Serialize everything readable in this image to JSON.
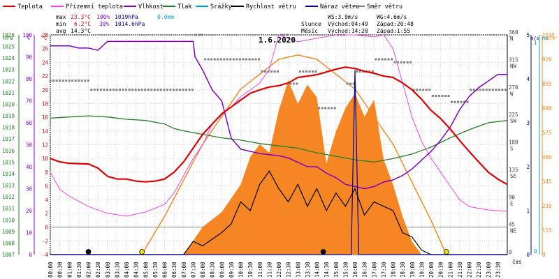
{
  "chart_data": {
    "type": "line",
    "date": "1.6.2020",
    "legend": [
      {
        "label": "Teplota",
        "color": "#e00000"
      },
      {
        "label": "Přízemní teplota",
        "color": "#ee44ee"
      },
      {
        "label": "Vlhkost",
        "color": "#8000c0"
      },
      {
        "label": "Tlak",
        "color": "#208020"
      },
      {
        "label": "Srážky",
        "color": "#00a0c8"
      },
      {
        "label": "Rychlost větru",
        "color": "#000000"
      },
      {
        "label": "Náraz větru",
        "color": "#000090"
      },
      {
        "label": "Směr větru",
        "color": "#808080"
      }
    ],
    "stats": {
      "max_label": "max",
      "max_temp": "23.3°C",
      "max_hum": "100%",
      "max_press": "1019hPa",
      "rain": "0.0mm",
      "min_label": "min",
      "min_temp": "6.2°C",
      "min_hum": "30%",
      "min_press": "1014.6hPa",
      "avg_label": "avg",
      "avg_temp": "14.3°C"
    },
    "info": {
      "ws": "WS:3.9m/s",
      "wg": "WG:4.6m/s",
      "sun_label": "Slunce",
      "sunrise": "Východ:04:49",
      "sunset": "Západ:20:48",
      "moon_label": "Měsíc",
      "moonrise": "Východ:14:20",
      "moonset": "Západ:1:55"
    },
    "axis_titles": {
      "hpa": "hPa",
      "pct": "%",
      "degc": "°C",
      "deg": "°",
      "ms": "m/s",
      "mm": "mm",
      "wm2": "W/m²",
      "time": "čas"
    },
    "hpa_ticks": [
      "1026",
      "1025",
      "1024",
      "1023",
      "1022",
      "1021",
      "1020",
      "1019",
      "1018",
      "1017",
      "1016",
      "1015",
      "1014",
      "1013",
      "1012",
      "1011",
      "1010",
      "1009",
      "1008",
      "1007"
    ],
    "pct_ticks": [
      "100",
      "90",
      "80",
      "70",
      "60",
      "50",
      "40",
      "30",
      "20",
      "10",
      "0"
    ],
    "temp_ticks": [
      "28",
      "26",
      "24",
      "22",
      "20",
      "18",
      "16",
      "14",
      "12",
      "10",
      "8",
      "6",
      "4",
      "2",
      "0",
      "-2",
      "-4"
    ],
    "dir_ticks": [
      {
        "value": "360",
        "label": "N"
      },
      {
        "value": "315",
        "label": "NW"
      },
      {
        "value": "270",
        "label": "W"
      },
      {
        "value": "225",
        "label": "SW"
      },
      {
        "value": "180",
        "label": "S"
      },
      {
        "value": "135",
        "label": "SE"
      },
      {
        "value": "90",
        "label": "E"
      },
      {
        "value": "45",
        "label": "NE"
      },
      {
        "value": "0",
        "label": ""
      }
    ],
    "ms_ticks": [
      "5",
      "4",
      "3",
      "2",
      "1",
      "0"
    ],
    "mm_ticks": [
      "1",
      "0"
    ],
    "wm2_ticks": [
      "1035",
      "920",
      "805",
      "690",
      "575",
      "460",
      "345",
      "230",
      "115",
      "0"
    ],
    "time_ticks": [
      "00:00",
      "00:30",
      "01:00",
      "01:30",
      "02:00",
      "02:30",
      "03:00",
      "03:30",
      "04:00",
      "04:30",
      "05:00",
      "05:30",
      "06:00",
      "06:30",
      "07:00",
      "07:30",
      "08:00",
      "08:30",
      "09:00",
      "09:30",
      "10:00",
      "10:30",
      "11:00",
      "11:30",
      "12:00",
      "12:30",
      "13:00",
      "13:30",
      "14:00",
      "14:30",
      "15:00",
      "15:30",
      "16:00",
      "16:30",
      "17:00",
      "17:30",
      "18:00",
      "18:30",
      "19:00",
      "19:30",
      "20:00",
      "20:30",
      "21:00",
      "21:30",
      "22:00",
      "22:30",
      "23:00",
      "23:30"
    ],
    "series_hours": {
      "temperature_c": [
        [
          0,
          10
        ],
        [
          0.5,
          9.5
        ],
        [
          1,
          9.3
        ],
        [
          2,
          9.2
        ],
        [
          2.5,
          8.6
        ],
        [
          3,
          7.4
        ],
        [
          3.5,
          7
        ],
        [
          4,
          7
        ],
        [
          4.5,
          6.7
        ],
        [
          5,
          6.6
        ],
        [
          5.5,
          6.7
        ],
        [
          6,
          7
        ],
        [
          6.5,
          8
        ],
        [
          7,
          9.5
        ],
        [
          7.5,
          11.5
        ],
        [
          8,
          13.5
        ],
        [
          8.5,
          15
        ],
        [
          9,
          16.5
        ],
        [
          9.5,
          17.5
        ],
        [
          10,
          18.5
        ],
        [
          10.5,
          19.5
        ],
        [
          11,
          20
        ],
        [
          11.5,
          20.4
        ],
        [
          12,
          20.6
        ],
        [
          12.5,
          21
        ],
        [
          13,
          21.8
        ],
        [
          13.5,
          22
        ],
        [
          14,
          22.2
        ],
        [
          14.5,
          22.6
        ],
        [
          15,
          23
        ],
        [
          15.5,
          23.3
        ],
        [
          16,
          23.1
        ],
        [
          16.5,
          22.7
        ],
        [
          17,
          22.4
        ],
        [
          17.5,
          22
        ],
        [
          18,
          21.8
        ],
        [
          18.5,
          21
        ],
        [
          19,
          20
        ],
        [
          19.5,
          18.6
        ],
        [
          20,
          17
        ],
        [
          20.5,
          15.8
        ],
        [
          21,
          14.3
        ],
        [
          21.5,
          12.6
        ],
        [
          22,
          11
        ],
        [
          22.5,
          9.5
        ],
        [
          23,
          8
        ],
        [
          23.5,
          7
        ],
        [
          24,
          6.2
        ]
      ],
      "ground_temp_c": [
        [
          0,
          8
        ],
        [
          0.5,
          5.5
        ],
        [
          1,
          4.5
        ],
        [
          2,
          3
        ],
        [
          3,
          2
        ],
        [
          4,
          1.6
        ],
        [
          5,
          2.2
        ],
        [
          6,
          3.3
        ],
        [
          6.5,
          5
        ],
        [
          7,
          7.5
        ],
        [
          7.5,
          10
        ],
        [
          8,
          12
        ],
        [
          8.5,
          15
        ],
        [
          9,
          16.5
        ],
        [
          9.5,
          17.5
        ],
        [
          10,
          19
        ],
        [
          11,
          21
        ],
        [
          11.5,
          23
        ],
        [
          12,
          28
        ],
        [
          13,
          27
        ],
        [
          14,
          27.5
        ],
        [
          15,
          28
        ],
        [
          16,
          28
        ],
        [
          17,
          27.7
        ],
        [
          17.5,
          28
        ],
        [
          18,
          26
        ],
        [
          18.5,
          21
        ],
        [
          19,
          16
        ],
        [
          19.5,
          12.5
        ],
        [
          20,
          10
        ],
        [
          21,
          6
        ],
        [
          21.5,
          4
        ],
        [
          22,
          3
        ],
        [
          23,
          2.5
        ],
        [
          24,
          2.3
        ]
      ],
      "humidity_pct": [
        [
          0,
          95
        ],
        [
          1,
          95
        ],
        [
          1.5,
          94
        ],
        [
          2,
          94
        ],
        [
          2.5,
          93
        ],
        [
          3,
          97
        ],
        [
          4.5,
          97
        ],
        [
          6,
          97
        ],
        [
          7.5,
          97
        ],
        [
          7.6,
          90
        ],
        [
          8,
          84
        ],
        [
          8.5,
          75
        ],
        [
          9,
          70
        ],
        [
          9.5,
          53
        ],
        [
          10,
          48
        ],
        [
          10.5,
          47
        ],
        [
          11,
          46
        ],
        [
          12,
          45
        ],
        [
          12.5,
          44
        ],
        [
          13,
          42
        ],
        [
          13.5,
          40
        ],
        [
          14,
          40
        ],
        [
          14.5,
          37
        ],
        [
          15,
          35
        ],
        [
          15.5,
          32
        ],
        [
          16,
          31
        ],
        [
          16.5,
          30
        ],
        [
          17,
          31
        ],
        [
          17.5,
          33
        ],
        [
          18,
          34
        ],
        [
          18.5,
          36
        ],
        [
          19,
          39
        ],
        [
          19.5,
          43
        ],
        [
          20,
          47
        ],
        [
          20.5,
          52
        ],
        [
          21,
          58
        ],
        [
          21.5,
          66
        ],
        [
          22,
          72
        ],
        [
          22.5,
          76
        ],
        [
          23,
          79
        ],
        [
          23.5,
          82
        ],
        [
          24,
          82
        ]
      ],
      "pressure_hpa": [
        [
          0,
          1018.8
        ],
        [
          1,
          1018.9
        ],
        [
          2,
          1019
        ],
        [
          3,
          1018.9
        ],
        [
          4,
          1018.7
        ],
        [
          5,
          1018.6
        ],
        [
          6,
          1018.3
        ],
        [
          6.5,
          1017.9
        ],
        [
          7,
          1017.7
        ],
        [
          8,
          1017.4
        ],
        [
          9,
          1017.1
        ],
        [
          10,
          1016.9
        ],
        [
          11,
          1016.6
        ],
        [
          12,
          1016.4
        ],
        [
          13,
          1016.2
        ],
        [
          14,
          1015.8
        ],
        [
          15,
          1015.5
        ],
        [
          16,
          1015.2
        ],
        [
          17,
          1015
        ],
        [
          18,
          1015.3
        ],
        [
          19,
          1015.7
        ],
        [
          20,
          1016.3
        ],
        [
          21,
          1017.1
        ],
        [
          22,
          1017.8
        ],
        [
          23,
          1018.4
        ],
        [
          24,
          1018.6
        ]
      ],
      "wind_speed_ms": [
        [
          0,
          0
        ],
        [
          7,
          0
        ],
        [
          7.5,
          0.3
        ],
        [
          8,
          0.2
        ],
        [
          9,
          0.5
        ],
        [
          9.5,
          0.7
        ],
        [
          10,
          1.2
        ],
        [
          10.5,
          1
        ],
        [
          11,
          1.6
        ],
        [
          11.5,
          1.9
        ],
        [
          12,
          1.5
        ],
        [
          12.5,
          1.2
        ],
        [
          13,
          1.6
        ],
        [
          13.5,
          1.1
        ],
        [
          14,
          1.5
        ],
        [
          14.5,
          1
        ],
        [
          15,
          1.4
        ],
        [
          15.5,
          1.1
        ],
        [
          16,
          1.5
        ],
        [
          16.5,
          0.9
        ],
        [
          17,
          1.2
        ],
        [
          17.5,
          1.1
        ],
        [
          18,
          1
        ],
        [
          18.5,
          0.5
        ],
        [
          19,
          0.4
        ],
        [
          19.5,
          0.1
        ],
        [
          20,
          0
        ],
        [
          24,
          0
        ]
      ],
      "wind_gust_ms": [
        [
          0,
          0
        ],
        [
          15.8,
          0
        ],
        [
          16,
          4.2
        ],
        [
          16.2,
          0
        ],
        [
          24,
          0
        ]
      ],
      "solar_wm2": [
        [
          0,
          0
        ],
        [
          7,
          0
        ],
        [
          8,
          130
        ],
        [
          9,
          200
        ],
        [
          10,
          330
        ],
        [
          10.5,
          460
        ],
        [
          11,
          520
        ],
        [
          11.5,
          480
        ],
        [
          12,
          680
        ],
        [
          12.5,
          820
        ],
        [
          13,
          710
        ],
        [
          13.5,
          800
        ],
        [
          14,
          740
        ],
        [
          14.5,
          430
        ],
        [
          15,
          580
        ],
        [
          15.5,
          690
        ],
        [
          16,
          760
        ],
        [
          16.5,
          650
        ],
        [
          17,
          730
        ],
        [
          17.5,
          450
        ],
        [
          18,
          330
        ],
        [
          18.5,
          180
        ],
        [
          19,
          60
        ],
        [
          19.5,
          0
        ],
        [
          24,
          0
        ]
      ],
      "theoretical_solar_wm2": [
        [
          4.8,
          0
        ],
        [
          6,
          180
        ],
        [
          8,
          520
        ],
        [
          10,
          780
        ],
        [
          12,
          920
        ],
        [
          13,
          940
        ],
        [
          14,
          920
        ],
        [
          16,
          780
        ],
        [
          18,
          520
        ],
        [
          20,
          160
        ],
        [
          20.8,
          0
        ]
      ],
      "wind_dir_deg": [
        [
          0,
          285
        ],
        [
          2,
          270
        ],
        [
          4,
          270
        ],
        [
          6,
          270
        ],
        [
          7.5,
          360
        ],
        [
          8,
          320
        ],
        [
          9.5,
          320
        ],
        [
          11,
          300
        ],
        [
          12,
          360
        ],
        [
          12.5,
          280
        ],
        [
          13,
          300
        ],
        [
          14,
          240
        ],
        [
          15,
          360
        ],
        [
          15.5,
          280
        ],
        [
          16,
          300
        ],
        [
          17,
          320
        ],
        [
          18,
          315
        ],
        [
          19,
          270
        ],
        [
          20,
          260
        ],
        [
          21,
          250
        ],
        [
          22,
          270
        ],
        [
          23,
          270
        ],
        [
          24,
          270
        ]
      ]
    },
    "symbols": [
      {
        "time": "02:00",
        "type": "moonset"
      },
      {
        "time": "04:49",
        "type": "sunrise"
      },
      {
        "time": "14:20",
        "type": "moonrise"
      },
      {
        "time": "20:48",
        "type": "sunset"
      }
    ],
    "time_range_hours": [
      0,
      24
    ],
    "temp_range_c": [
      -4,
      28
    ],
    "pct_range": [
      0,
      100
    ],
    "hpa_range": [
      1007,
      1026
    ],
    "dir_range_deg": [
      0,
      360
    ],
    "ms_range": [
      0,
      5
    ],
    "wm2_range": [
      0,
      1035
    ],
    "grid": true,
    "legend_position": "top"
  }
}
